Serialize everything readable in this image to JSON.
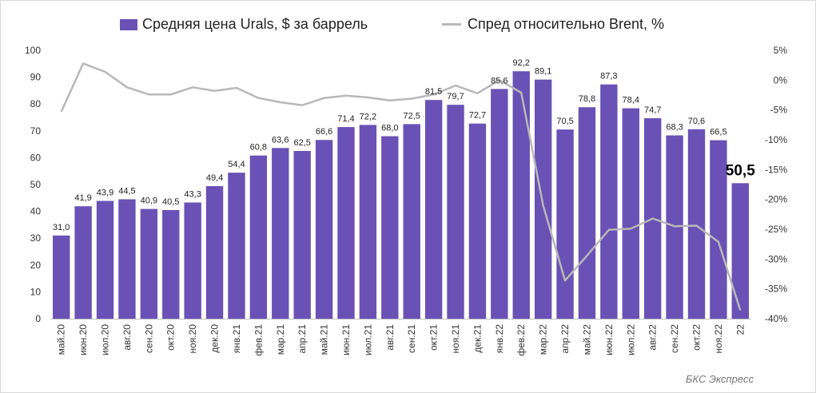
{
  "legend": {
    "bar_label": "Средняя цена Urals, $ за баррель",
    "line_label": "Спред относительно Brent, %"
  },
  "source": "БКС Экспресс",
  "colors": {
    "bar": "#6a51b5",
    "line": "#b8b8b8",
    "axis_text": "#333333"
  },
  "chart_data": {
    "type": "bar",
    "categories": [
      "май.20",
      "июн.20",
      "июл.20",
      "авг.20",
      "сен.20",
      "окт.20",
      "ноя.20",
      "дек.20",
      "янв.21",
      "фев.21",
      "мар.21",
      "апр.21",
      "май.21",
      "июн.21",
      "июл.21",
      "авг.21",
      "сен.21",
      "окт.21",
      "ноя.21",
      "дек.21",
      "янв.22",
      "фев.22",
      "мар.22",
      "апр.22",
      "май.22",
      "июн.22",
      "июл.22",
      "авг.22",
      "сен.22",
      "окт.22",
      "ноя.22",
      "22"
    ],
    "series": [
      {
        "name": "Средняя цена Urals, $ за баррель",
        "type": "bar",
        "axis": "left",
        "values": [
          31.0,
          41.9,
          43.9,
          44.5,
          40.9,
          40.5,
          43.3,
          49.4,
          54.4,
          60.8,
          63.6,
          62.5,
          66.6,
          71.4,
          72.2,
          68.0,
          72.5,
          81.5,
          79.7,
          72.7,
          85.6,
          92.2,
          89.1,
          70.5,
          78.8,
          87.3,
          78.4,
          74.7,
          68.3,
          70.6,
          66.5,
          50.5
        ],
        "labels": [
          "31,0",
          "41,9",
          "43,9",
          "44,5",
          "40,9",
          "40,5",
          "43,3",
          "49,4",
          "54,4",
          "60,8",
          "63,6",
          "62,5",
          "66,6",
          "71,4",
          "72,2",
          "68,0",
          "72,5",
          "81,5",
          "79,7",
          "72,7",
          "85,6",
          "92,2",
          "89,1",
          "70,5",
          "78,8",
          "87,3",
          "78,4",
          "74,7",
          "68,3",
          "70,6",
          "66,5",
          "50,5"
        ]
      },
      {
        "name": "Спред относительно Brent, %",
        "type": "line",
        "axis": "right",
        "values": [
          -5.3,
          2.8,
          1.4,
          -1.2,
          -2.4,
          -2.4,
          -1.2,
          -1.8,
          -1.3,
          -3.0,
          -3.7,
          -4.2,
          -3.0,
          -2.6,
          -2.9,
          -3.4,
          -3.1,
          -2.4,
          -0.9,
          -2.2,
          0.0,
          -2.1,
          -21.0,
          -33.6,
          -29.4,
          -25.1,
          -24.9,
          -23.2,
          -24.5,
          -24.4,
          -27.1,
          -38.6
        ]
      }
    ],
    "y_left": {
      "ticks": [
        "0",
        "10",
        "20",
        "30",
        "40",
        "50",
        "60",
        "70",
        "80",
        "90",
        "100"
      ],
      "min": 0,
      "max": 100
    },
    "y_right": {
      "ticks": [
        "5%",
        "0%",
        "-5%",
        "-10%",
        "-15%",
        "-20%",
        "-25%",
        "-30%",
        "-35%",
        "-40%"
      ],
      "min": -40,
      "max": 5
    },
    "highlight_last_label": true,
    "grid": false,
    "legend_position": "top"
  }
}
